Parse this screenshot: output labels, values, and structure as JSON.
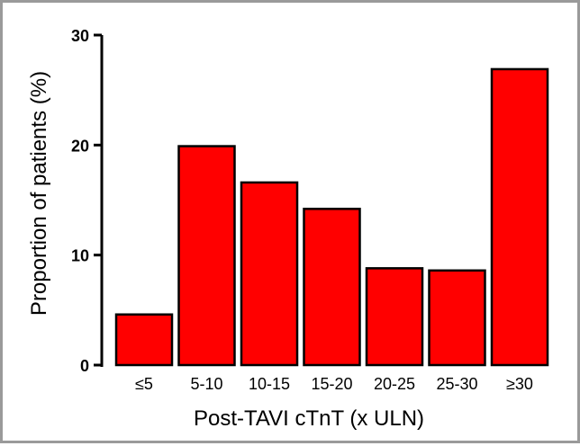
{
  "chart_data": {
    "type": "bar",
    "categories": [
      "≤5",
      "5-10",
      "10-15",
      "15-20",
      "20-25",
      "25-30",
      "≥30"
    ],
    "values": [
      4.6,
      19.9,
      16.6,
      14.2,
      8.8,
      8.6,
      26.9
    ],
    "xlabel": "Post-TAVI cTnT (x ULN)",
    "ylabel": "Proportion of patients (%)",
    "ylim": [
      0,
      30
    ],
    "yticks": [
      0,
      10,
      20,
      30
    ],
    "grid": false,
    "colors": {
      "bar_fill": "#ff0000",
      "bar_stroke": "#000000",
      "frame": "#9a9a9a"
    }
  }
}
